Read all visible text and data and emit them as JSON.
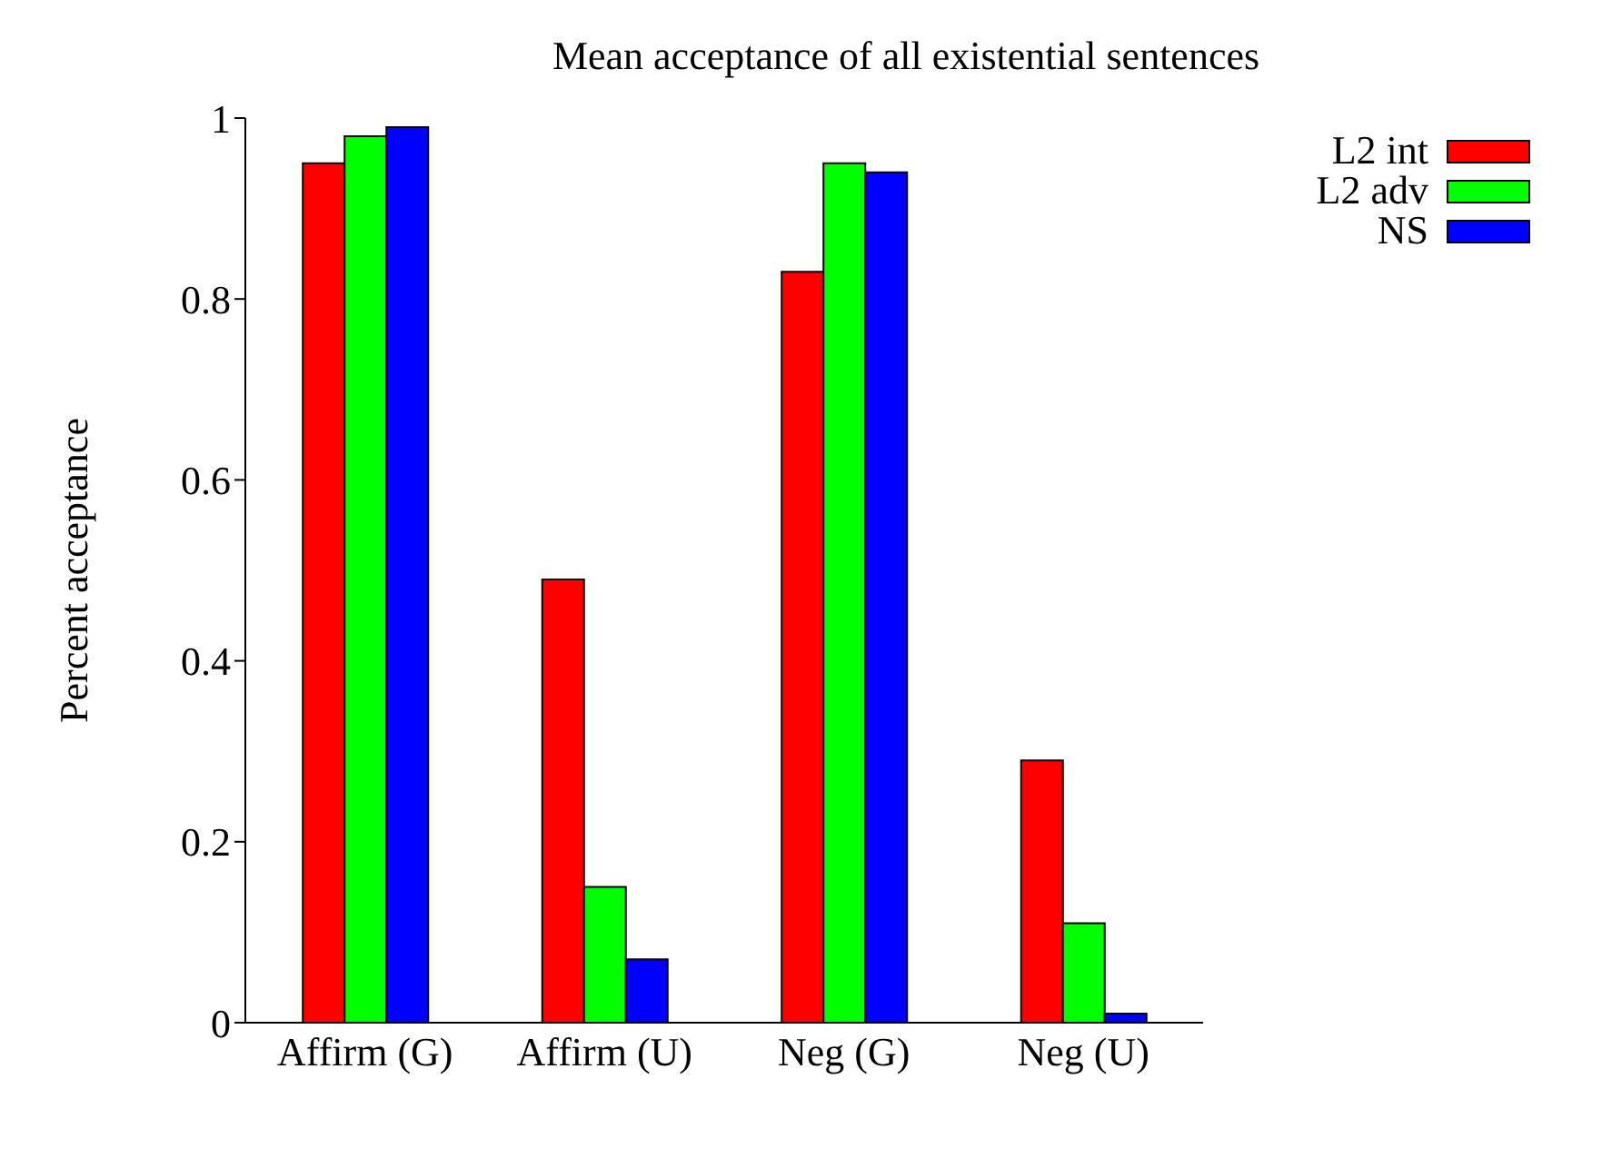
{
  "chart_data": {
    "type": "bar",
    "title": "Mean acceptance of all existential sentences",
    "ylabel": "Percent acceptance",
    "categories": [
      "Affirm (G)",
      "Affirm (U)",
      "Neg (G)",
      "Neg (U)"
    ],
    "series": [
      {
        "name": "L2 int",
        "color": "#ff0000",
        "values": [
          0.95,
          0.49,
          0.83,
          0.29
        ]
      },
      {
        "name": "L2 adv",
        "color": "#00ff00",
        "values": [
          0.98,
          0.15,
          0.95,
          0.11
        ]
      },
      {
        "name": "NS",
        "color": "#0000ff",
        "values": [
          0.99,
          0.07,
          0.94,
          0.01
        ]
      }
    ],
    "ylim": [
      0,
      1
    ],
    "yticks": [
      0,
      0.2,
      0.4,
      0.6,
      0.8,
      1
    ],
    "grid": false,
    "legend": "top right"
  }
}
